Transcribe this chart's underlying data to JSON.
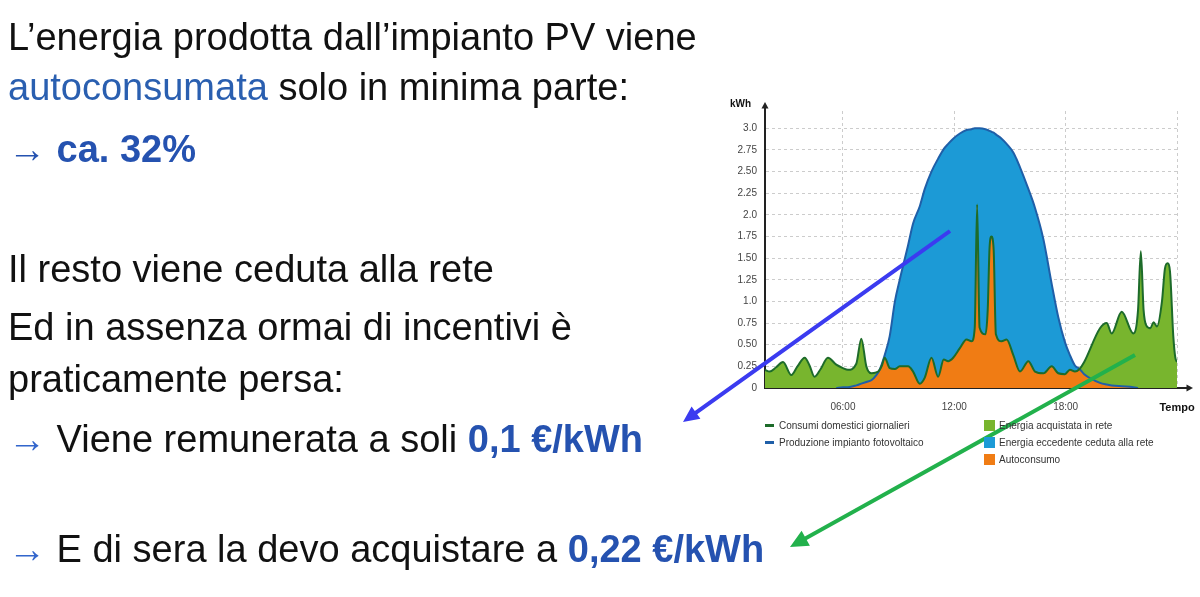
{
  "chart_data": {
    "type": "area",
    "xlabel": "Tempo",
    "ylabel": "kWh",
    "annotations": [
      "L’energia prodotta dall’impianto PV viene",
      "autoconsumata",
      "solo in minima parte:",
      "→ ca. 32%",
      "Il resto viene ceduta alla rete",
      "Ed in assenza ormai di incentivi è",
      "praticamente persa:",
      "→",
      "Viene remunerata a soli",
      "0,1 €/kWh",
      "→",
      "E di sera la devo acquistare a",
      "0,22 €/kWh"
    ],
    "x": [
      1.8,
      2.05,
      2.4,
      2.77,
      3.22,
      3.55,
      3.94,
      4.2,
      4.47,
      4.8,
      5.19,
      5.64,
      6,
      6.27,
      6.72,
      6.99,
      7.26,
      7.53,
      7.8,
      7.95,
      8.1,
      8.25,
      8.52,
      8.8,
      9.06,
      9.51,
      9.78,
      10.14,
      10.41,
      10.77,
      11.13,
      11.43,
      11.67,
      11.94,
      12.3,
      12.66,
      12.93,
      13.1,
      13.23,
      13.36,
      13.68,
      13.8,
      13.9,
      14,
      14.12,
      14.24,
      14.55,
      14.82,
      15.18,
      15.54,
      15.99,
      16.35,
      16.8,
      17.25,
      17.6,
      17.96,
      18.23,
      18.5,
      18.75,
      19,
      19.85,
      20.21,
      20.48,
      21.02,
      21.65,
      21.9,
      22.05,
      22.2,
      22.35,
      22.56,
      22.74,
      22.92,
      23.19,
      23.35,
      23.49,
      23.62,
      23.8,
      23.91,
      24
    ],
    "xlim": [
      1.8,
      24
    ],
    "xticks": [
      {
        "value": 6,
        "label": "06:00"
      },
      {
        "value": 12,
        "label": "12:00"
      },
      {
        "value": 18,
        "label": "18:00"
      },
      {
        "value": 24,
        "label": null
      }
    ],
    "ylim": [
      0,
      3.2
    ],
    "yticks": [
      0,
      0.25,
      {
        "value": 0.5,
        "label": "0.50"
      },
      0.75,
      {
        "value": 1,
        "label": "1.0"
      },
      1.25,
      {
        "value": 1.5,
        "label": "1.50"
      },
      1.75,
      {
        "value": 2,
        "label": "2.0"
      },
      2.25,
      {
        "value": 2.5,
        "label": "2.50"
      },
      2.75,
      {
        "value": 3,
        "label": "3.0"
      }
    ],
    "grid": true,
    "legend": "bottom",
    "stacked": true,
    "series": [
      {
        "name": "Consumi domestici giornalieri",
        "type": "line",
        "color": "#1d6b2a",
        "values": [
          0.21,
          0.19,
          0.24,
          0.3,
          0.15,
          0.25,
          0.35,
          0.26,
          0.13,
          0.22,
          0.35,
          0.27,
          0.23,
          0.21,
          0.28,
          0.57,
          0.25,
          0.17,
          0.18,
          0.2,
          0.26,
          0.35,
          0.23,
          0.22,
          0.25,
          0.25,
          0.19,
          0.05,
          0.12,
          0.35,
          0.13,
          0.33,
          0.31,
          0.35,
          0.46,
          0.56,
          0.54,
          0.69,
          2.12,
          0.7,
          0.62,
          0.9,
          1.62,
          1.75,
          1.6,
          0.62,
          0.54,
          0.56,
          0.38,
          0.19,
          0.31,
          0.19,
          0.17,
          0.25,
          0.17,
          0.16,
          0.21,
          0.19,
          0.22,
          0.3,
          0.69,
          0.75,
          0.63,
          0.88,
          0.63,
          0.9,
          1.58,
          0.9,
          0.72,
          0.69,
          0.76,
          0.71,
          1.0,
          1.38,
          1.44,
          1.35,
          0.6,
          0.35,
          0.3
        ]
      },
      {
        "name": "Produzione impianto fotovoltaico",
        "type": "line",
        "color": "#1f5fa8",
        "values": [
          null,
          null,
          null,
          null,
          null,
          null,
          null,
          null,
          null,
          null,
          null,
          0,
          0.01,
          0.01,
          0.03,
          0.05,
          0.07,
          0.09,
          0.15,
          0.2,
          0.28,
          0.38,
          0.6,
          1,
          1.25,
          1.65,
          1.9,
          2.1,
          2.3,
          2.5,
          2.65,
          2.76,
          2.82,
          2.88,
          2.94,
          2.98,
          2.99,
          3,
          3,
          3,
          2.99,
          2.98,
          2.97,
          2.96,
          2.95,
          2.93,
          2.88,
          2.82,
          2.72,
          2.55,
          2.3,
          2.08,
          1.72,
          1.2,
          0.82,
          0.53,
          0.38,
          0.26,
          0.22,
          0.16,
          0.06,
          0.04,
          0.03,
          0.02,
          0.01,
          0,
          null,
          null,
          null,
          null,
          null,
          null,
          null,
          null,
          null,
          null,
          null,
          null,
          null
        ]
      },
      {
        "name": "Autoconsumo",
        "color": "#f07c14",
        "values": [
          0,
          0,
          0,
          0,
          0,
          0,
          0,
          0,
          0,
          0,
          0,
          0,
          0.01,
          0.01,
          0.03,
          0.05,
          0.07,
          0.09,
          0.15,
          0.2,
          0.26,
          0.35,
          0.23,
          0.22,
          0.25,
          0.25,
          0.19,
          0.05,
          0.12,
          0.35,
          0.13,
          0.33,
          0.31,
          0.35,
          0.46,
          0.56,
          0.54,
          0.69,
          2.12,
          0.7,
          0.62,
          0.9,
          1.62,
          1.75,
          1.6,
          0.62,
          0.54,
          0.56,
          0.38,
          0.19,
          0.31,
          0.19,
          0.17,
          0.25,
          0.17,
          0.16,
          0.21,
          0.19,
          0.22,
          0.16,
          0.06,
          0.04,
          0.03,
          0.02,
          0.01,
          0,
          0,
          0,
          0,
          0,
          0,
          0,
          0,
          0,
          0,
          0,
          0,
          0,
          0
        ]
      },
      {
        "name": "Energia acquistata in rete",
        "color": "#78b52e",
        "values": [
          0.21,
          0.19,
          0.24,
          0.3,
          0.15,
          0.25,
          0.35,
          0.26,
          0.13,
          0.22,
          0.35,
          0.27,
          0.22,
          0.2,
          0.25,
          0.52,
          0.18,
          0.08,
          0.03,
          0,
          null,
          null,
          null,
          null,
          null,
          null,
          null,
          null,
          null,
          null,
          null,
          null,
          null,
          null,
          null,
          null,
          null,
          null,
          null,
          null,
          null,
          null,
          null,
          null,
          null,
          null,
          null,
          null,
          null,
          null,
          null,
          null,
          null,
          null,
          null,
          null,
          null,
          null,
          0,
          0.14,
          0.63,
          0.71,
          0.6,
          0.86,
          0.62,
          0.9,
          1.58,
          0.9,
          0.72,
          0.69,
          0.76,
          0.71,
          1.0,
          1.38,
          1.44,
          1.35,
          0.6,
          0.35,
          0.3
        ]
      },
      {
        "name": "Energia eccedente ceduta alla rete",
        "color": "#1c9ad6",
        "values": [
          null,
          null,
          null,
          null,
          null,
          null,
          null,
          null,
          null,
          null,
          null,
          null,
          null,
          null,
          null,
          null,
          null,
          null,
          null,
          0,
          0.02,
          0.03,
          0.37,
          0.78,
          1,
          1.4,
          1.71,
          2.05,
          2.18,
          2.15,
          2.52,
          2.43,
          2.51,
          2.53,
          2.48,
          2.42,
          2.45,
          2.31,
          0.88,
          2.3,
          2.37,
          2.08,
          1.35,
          1.21,
          1.35,
          2.31,
          2.34,
          2.26,
          2.34,
          2.36,
          1.99,
          1.89,
          1.55,
          0.95,
          0.65,
          0.37,
          0.17,
          0.07,
          0,
          null,
          null,
          null,
          null,
          null,
          null,
          null,
          null,
          null,
          null,
          null,
          null,
          null,
          null,
          null,
          null,
          null,
          null,
          null,
          null
        ]
      }
    ]
  }
}
